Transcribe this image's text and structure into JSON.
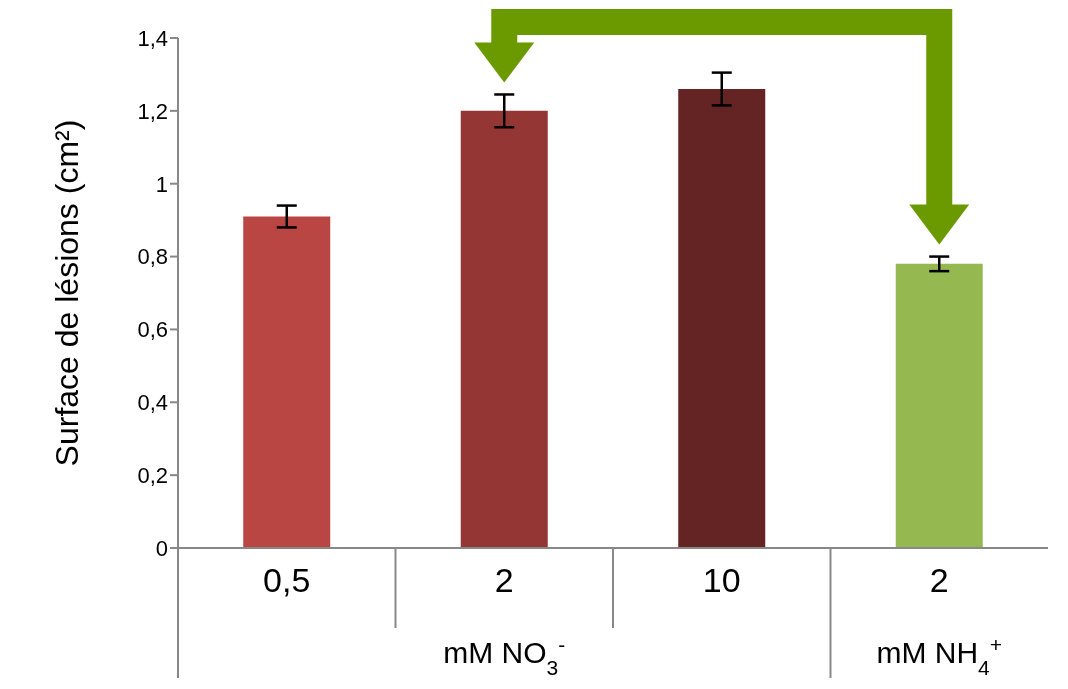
{
  "chart_data": {
    "type": "bar",
    "ylabel": "Surface de lésions (cm²)",
    "categories": [
      "0,5",
      "2",
      "10",
      "2"
    ],
    "values": [
      0.91,
      1.2,
      1.26,
      0.78
    ],
    "errors": [
      0.03,
      0.045,
      0.045,
      0.02
    ],
    "colors": [
      "#b94643",
      "#943634",
      "#632423",
      "#95b851"
    ],
    "ylim": [
      0,
      1.4
    ],
    "yticks": [
      0,
      {
        "value": 0.2,
        "label": "0,2"
      },
      {
        "value": 0.4,
        "label": "0,4"
      },
      {
        "value": 0.6,
        "label": "0,6"
      },
      {
        "value": 0.8,
        "label": "0,8"
      },
      1,
      {
        "value": 1.2,
        "label": "1,2"
      },
      {
        "value": 1.4,
        "label": "1,4"
      }
    ],
    "annotations": [
      "mM NO$_{3}$$^{-}$",
      "mM NH$_{4}$$^{+}$"
    ],
    "grid": false,
    "legend": false
  }
}
